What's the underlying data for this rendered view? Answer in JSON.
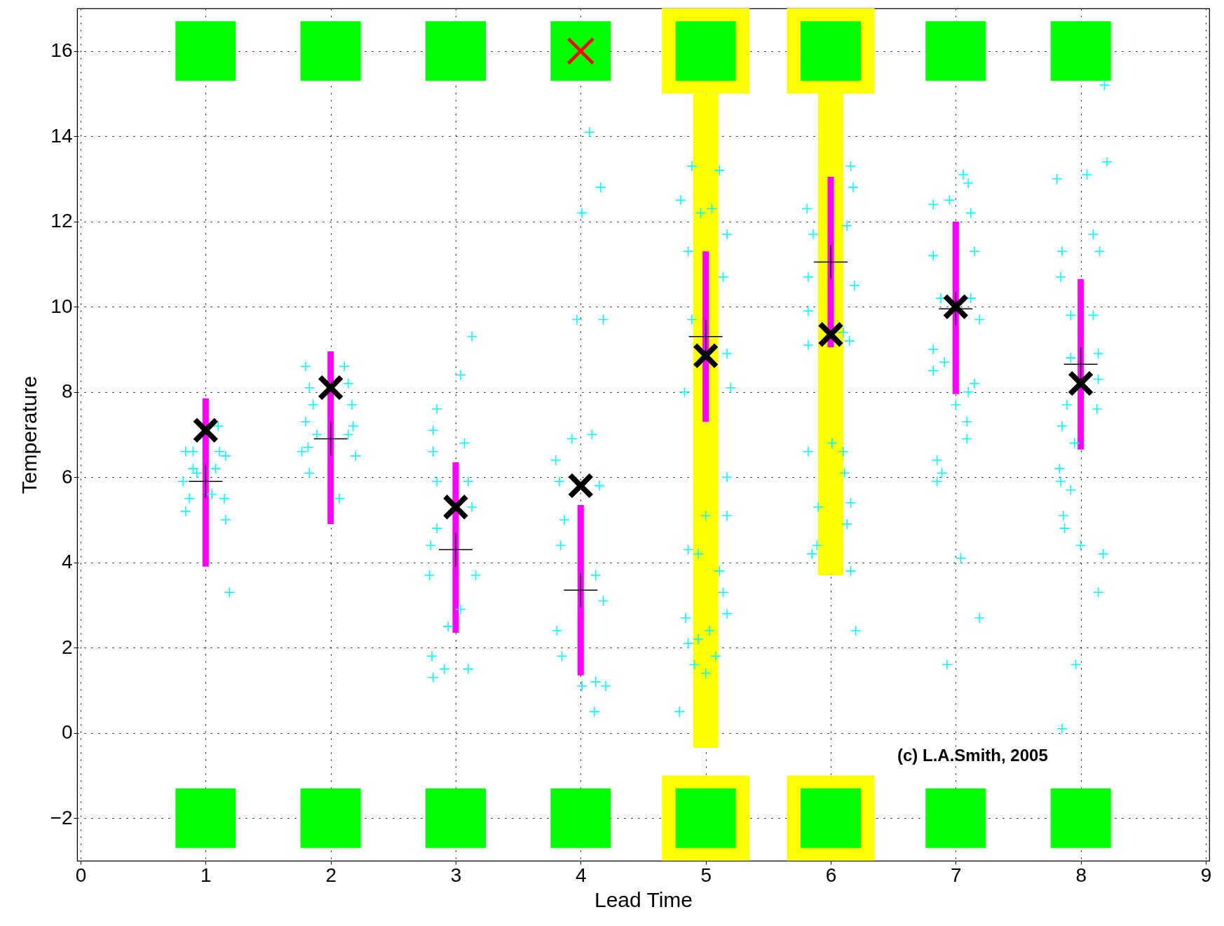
{
  "chart_data": {
    "type": "scatter",
    "xlabel": "Lead Time",
    "ylabel": "Temperature",
    "xlim": [
      0,
      9
    ],
    "xticks": [
      0,
      1,
      2,
      3,
      4,
      5,
      6,
      7,
      8,
      9
    ],
    "ylim": [
      -3,
      17
    ],
    "yticks": [
      -2,
      0,
      2,
      4,
      6,
      8,
      10,
      12,
      14,
      16
    ],
    "grid": true,
    "annotations": [
      "(c) L.A.Smith, 2005"
    ],
    "series": [
      {
        "type": "bar",
        "color": "#ffff00",
        "x": [
          5,
          6
        ],
        "base": [
          -3,
          -3
        ],
        "values": [
          2,
          2
        ]
      },
      {
        "type": "bar",
        "color": "#ffff00",
        "x": [
          5,
          6
        ],
        "base": [
          -0.35,
          3.7
        ],
        "values": [
          15.35,
          11.3
        ]
      },
      {
        "type": "bar",
        "color": "#ffff00",
        "x": [
          5,
          6
        ],
        "base": [
          15,
          15
        ],
        "values": [
          2,
          2
        ]
      },
      {
        "type": "bar",
        "color": "#00ff00",
        "x": [
          1,
          2,
          3,
          4,
          5,
          6,
          7,
          8
        ],
        "base": [
          -2.7,
          -2.7,
          -2.7,
          -2.7,
          -2.7,
          -2.7,
          -2.7,
          -2.7
        ],
        "values": [
          1.4,
          1.4,
          1.4,
          1.4,
          1.4,
          1.4,
          1.4,
          1.4
        ]
      },
      {
        "type": "bar",
        "color": "#00ff00",
        "x": [
          1,
          2,
          3,
          4,
          5,
          6,
          7,
          8
        ],
        "base": [
          15.3,
          15.3,
          15.3,
          15.3,
          15.3,
          15.3,
          15.3,
          15.3
        ],
        "values": [
          1.4,
          1.4,
          1.4,
          1.4,
          1.4,
          1.4,
          1.4,
          1.4
        ]
      },
      {
        "marker": "cross",
        "color": "#ff0000",
        "x": [
          4
        ],
        "values": [
          16
        ]
      },
      {
        "type": "bar",
        "color": "#ff00ff",
        "x": [
          1,
          2,
          3,
          4,
          5,
          6,
          7,
          8
        ],
        "base": [
          3.9,
          4.9,
          2.35,
          1.35,
          7.3,
          9.05,
          7.95,
          6.65
        ],
        "values": [
          3.95,
          4.05,
          4.0,
          4.0,
          4.0,
          4.0,
          4.05,
          4.0
        ]
      },
      {
        "marker": "cross",
        "color": "#00ffff",
        "x": [
          0.84,
          0.9,
          0.82,
          0.84,
          1.08,
          1.11,
          1.15,
          1.16,
          1.19,
          1.1,
          1.16,
          0.87,
          1.05,
          0.9,
          0.93,
          1.8,
          1.83,
          1.8,
          1.82,
          2.11,
          2.14,
          2.17,
          2.18,
          2.2,
          2.07,
          1.83,
          1.86,
          1.89,
          2.14,
          1.77,
          2.82,
          2.85,
          3.04,
          3.13,
          2.82,
          2.85,
          2.8,
          2.79,
          2.81,
          2.82,
          2.91,
          2.94,
          3.04,
          3.1,
          3.16,
          3.1,
          3.07,
          3.13,
          2.85,
          3.8,
          3.93,
          4.09,
          4.15,
          3.83,
          3.87,
          3.84,
          4.12,
          4.18,
          3.81,
          3.85,
          4.01,
          4.12,
          4.11,
          4.2,
          3.97,
          4.18,
          4.01,
          4.16,
          4.07,
          4.89,
          5.11,
          4.8,
          4.96,
          5.05,
          5.17,
          4.86,
          5.14,
          4.89,
          5.17,
          4.83,
          5.2,
          5.17,
          5.0,
          5.17,
          4.86,
          4.94,
          5.11,
          5.14,
          5.17,
          4.84,
          5.03,
          4.86,
          4.94,
          5.08,
          4.91,
          5.0,
          4.79,
          5.81,
          6.16,
          6.18,
          5.86,
          6.13,
          5.82,
          6.19,
          5.82,
          6.1,
          5.82,
          6.15,
          5.82,
          6.01,
          6.1,
          6.11,
          6.16,
          5.9,
          6.13,
          5.89,
          5.85,
          6.16,
          6.2,
          6.82,
          6.95,
          7.06,
          7.1,
          7.12,
          6.82,
          7.15,
          6.88,
          7.12,
          7.19,
          6.82,
          6.91,
          7.15,
          6.82,
          7.1,
          7.0,
          7.09,
          7.09,
          6.85,
          6.89,
          6.85,
          7.04,
          7.19,
          6.93,
          7.81,
          8.05,
          8.21,
          8.19,
          7.85,
          8.1,
          8.15,
          7.84,
          7.92,
          8.1,
          7.92,
          8.14,
          8.14,
          7.89,
          8.13,
          7.85,
          7.95,
          7.83,
          7.84,
          7.92,
          7.86,
          7.87,
          8.0,
          8.18,
          8.14,
          7.96,
          7.85
        ],
        "values": [
          6.6,
          6.2,
          5.9,
          5.2,
          6.2,
          6.6,
          5.5,
          5.0,
          3.3,
          7.2,
          6.5,
          5.5,
          5.6,
          6.6,
          6.1,
          8.6,
          8.1,
          7.3,
          6.7,
          8.6,
          8.2,
          7.7,
          7.2,
          6.5,
          5.5,
          6.1,
          7.7,
          7.0,
          7.0,
          6.6,
          7.1,
          7.6,
          8.4,
          9.3,
          6.6,
          5.9,
          4.4,
          3.7,
          1.8,
          1.3,
          1.5,
          2.5,
          2.9,
          1.5,
          3.7,
          5.9,
          6.8,
          5.3,
          4.8,
          6.4,
          6.9,
          7.0,
          5.8,
          5.9,
          5.0,
          4.4,
          3.7,
          3.1,
          2.4,
          1.8,
          1.1,
          1.2,
          0.5,
          1.1,
          9.7,
          9.7,
          12.2,
          12.8,
          14.1,
          13.3,
          13.2,
          12.5,
          12.2,
          12.3,
          11.7,
          11.3,
          10.7,
          9.7,
          8.9,
          8.0,
          8.1,
          6.0,
          5.1,
          5.1,
          4.3,
          4.2,
          3.8,
          3.3,
          2.8,
          2.7,
          2.4,
          2.1,
          2.2,
          1.8,
          1.6,
          1.4,
          0.5,
          12.3,
          13.3,
          12.8,
          11.7,
          11.9,
          10.7,
          10.5,
          9.9,
          9.4,
          9.1,
          9.2,
          6.6,
          6.8,
          6.6,
          6.1,
          5.4,
          5.3,
          4.9,
          4.4,
          4.2,
          3.8,
          2.4,
          12.4,
          12.5,
          13.1,
          12.9,
          12.2,
          11.2,
          11.3,
          10.2,
          10.2,
          9.7,
          9.0,
          8.7,
          8.2,
          8.5,
          8.0,
          7.7,
          7.3,
          6.9,
          6.4,
          6.1,
          5.9,
          4.1,
          2.7,
          1.6,
          13.0,
          13.1,
          13.4,
          15.2,
          11.3,
          11.7,
          11.3,
          10.7,
          9.8,
          9.8,
          8.8,
          8.9,
          8.3,
          7.7,
          7.6,
          7.2,
          6.8,
          6.2,
          5.9,
          5.7,
          5.1,
          4.8,
          4.4,
          4.2,
          3.3,
          1.6,
          0.1
        ]
      },
      {
        "marker": "cross",
        "color": "#000000",
        "x": [
          1,
          2,
          3,
          4,
          5,
          6,
          7,
          8
        ],
        "values": [
          5.9,
          6.9,
          4.3,
          3.35,
          9.3,
          11.05,
          9.95,
          8.65
        ]
      },
      {
        "marker": "cross",
        "color": "#000000",
        "x": [
          1,
          2,
          3,
          4,
          5,
          6,
          7,
          8
        ],
        "values": [
          7.1,
          8.1,
          5.3,
          5.8,
          8.85,
          9.35,
          10.0,
          8.2
        ]
      }
    ]
  }
}
